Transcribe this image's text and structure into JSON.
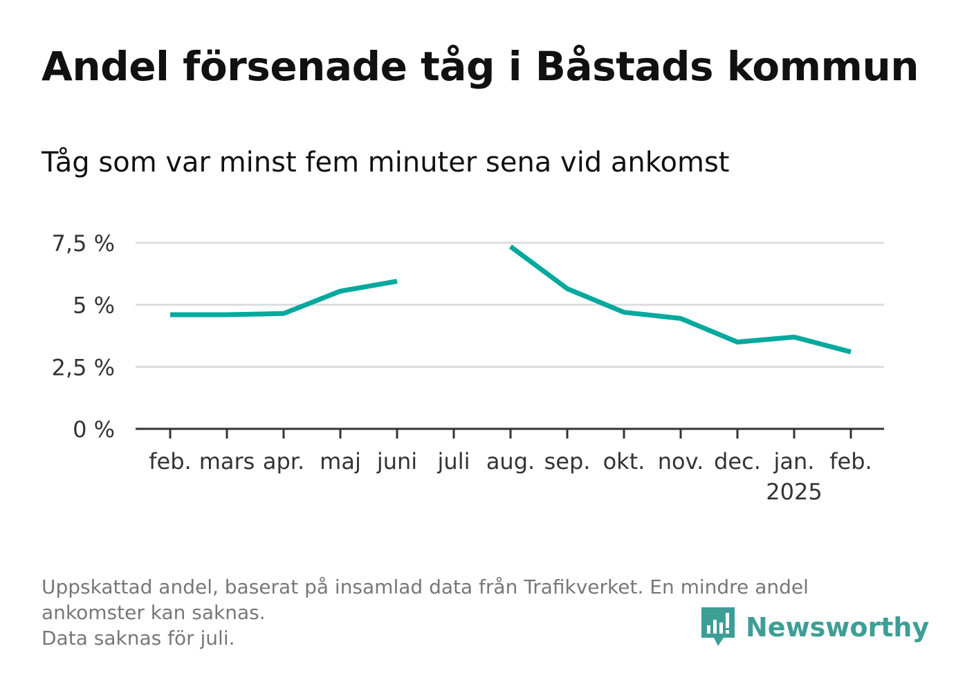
{
  "title": "Andel försenade tåg i Båstads kommun",
  "subtitle": "Tåg som var minst fem minuter sena vid ankomst",
  "chart_data": {
    "type": "line",
    "categories": [
      "feb.",
      "mars",
      "apr.",
      "maj",
      "juni",
      "juli",
      "aug.",
      "sep.",
      "okt.",
      "nov.",
      "dec.",
      "jan.",
      "feb."
    ],
    "category_sublabels": [
      "",
      "",
      "",
      "",
      "",
      "",
      "",
      "",
      "",
      "",
      "",
      "2025",
      ""
    ],
    "series": [
      {
        "values": [
          4.6,
          4.6,
          4.65,
          5.55,
          5.95,
          null,
          7.35,
          5.65,
          4.7,
          4.45,
          3.5,
          3.7,
          3.1
        ]
      }
    ],
    "ylim": [
      0,
      7.5
    ],
    "yticks": [
      0,
      2.5,
      5,
      7.5
    ],
    "ytick_labels": [
      "0 %",
      "2,5 %",
      "5 %",
      "7,5 %"
    ],
    "grid": true,
    "line_color": "#00a99d"
  },
  "footnote": {
    "line1": "Uppskattad andel, baserat på insamlad data från Trafikverket. En mindre andel",
    "line2": "ankomster kan saknas.",
    "line3": "Data saknas för juli."
  },
  "brand": {
    "name": "Newsworthy",
    "icon": "newsworthy-logo-icon",
    "color": "#3d9e96"
  }
}
